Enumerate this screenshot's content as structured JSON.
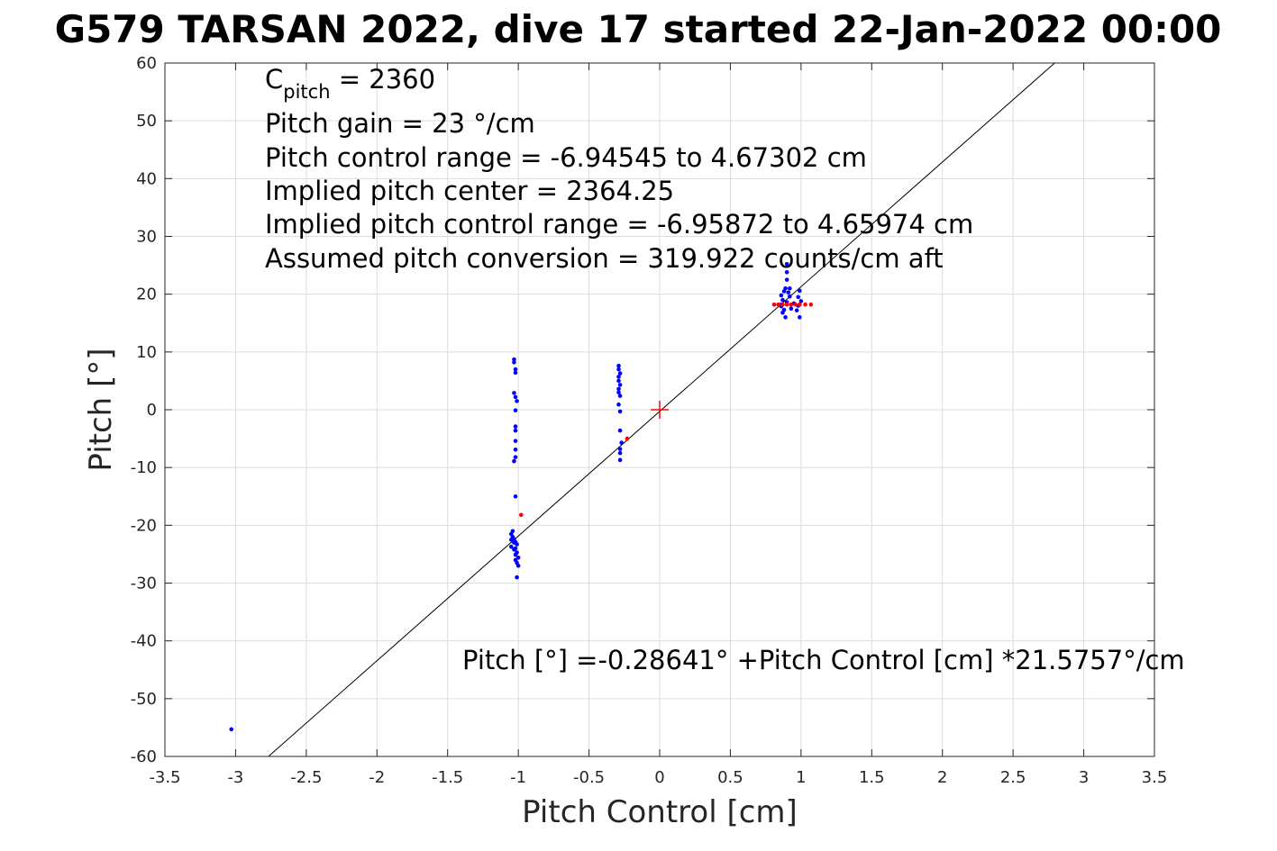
{
  "chart_data": {
    "type": "scatter",
    "title": "G579 TARSAN 2022, dive 17 started 22-Jan-2022 00:00",
    "xlabel": "Pitch Control [cm]",
    "ylabel": "Pitch [°]",
    "xlim": [
      -3.5,
      3.5
    ],
    "ylim": [
      -60,
      60
    ],
    "xticks": [
      "-3.5",
      "-3",
      "-2.5",
      "-2",
      "-1.5",
      "-1",
      "-0.5",
      "0",
      "0.5",
      "1",
      "1.5",
      "2",
      "2.5",
      "3",
      "3.5"
    ],
    "yticks": [
      "-60",
      "-50",
      "-40",
      "-30",
      "-20",
      "-10",
      "0",
      "10",
      "20",
      "30",
      "40",
      "50",
      "60"
    ],
    "grid": true,
    "annotations": {
      "cpitch_symbol": "C",
      "cpitch_subscript": "pitch",
      "cpitch_value": " = 2360",
      "lines": [
        "Pitch gain = 23 °/cm",
        "Pitch control range = -6.94545 to 4.67302 cm",
        "Implied pitch center = 2364.25",
        "Implied pitch control range = -6.95872 to 4.65974 cm",
        "Assumed pitch conversion = 319.922 counts/cm aft"
      ],
      "fit_equation": "Pitch [°] =-0.28641°  +Pitch Control [cm] *21.5757°/cm"
    },
    "fit_line": {
      "intercept": -0.28641,
      "slope": 21.5757,
      "color": "#000000"
    },
    "center_marker": {
      "x": 0,
      "y": 0,
      "color": "#ff0000"
    },
    "series": [
      {
        "color": "#0000ff",
        "points": [
          [
            -3.03,
            -55.3
          ],
          [
            -1.03,
            8.7
          ],
          [
            -1.03,
            8.2
          ],
          [
            -1.02,
            7.0
          ],
          [
            -1.02,
            6.4
          ],
          [
            -1.03,
            2.9
          ],
          [
            -1.02,
            2.2
          ],
          [
            -1.01,
            1.5
          ],
          [
            -1.02,
            -0.1
          ],
          [
            -1.02,
            -2.9
          ],
          [
            -1.02,
            -3.6
          ],
          [
            -1.02,
            -5.4
          ],
          [
            -1.02,
            -6.9
          ],
          [
            -1.02,
            -8.2
          ],
          [
            -1.03,
            -8.9
          ],
          [
            -1.02,
            -15.0
          ],
          [
            -1.05,
            -21.5
          ],
          [
            -1.04,
            -22.0
          ],
          [
            -1.03,
            -22.4
          ],
          [
            -1.02,
            -22.9
          ],
          [
            -1.01,
            -23.3
          ],
          [
            -1.05,
            -23.7
          ],
          [
            -1.03,
            -24.2
          ],
          [
            -1.01,
            -24.7
          ],
          [
            -1.02,
            -25.1
          ],
          [
            -1.0,
            -25.6
          ],
          [
            -1.02,
            -26.0
          ],
          [
            -1.01,
            -26.5
          ],
          [
            -1.0,
            -27.0
          ],
          [
            -1.01,
            -29.0
          ],
          [
            -1.04,
            -21.0
          ],
          [
            -1.03,
            -23.0
          ],
          [
            -1.02,
            -24.0
          ],
          [
            -1.05,
            -22.5
          ],
          [
            -0.29,
            7.6
          ],
          [
            -0.29,
            7.0
          ],
          [
            -0.28,
            6.3
          ],
          [
            -0.29,
            5.7
          ],
          [
            -0.29,
            5.0
          ],
          [
            -0.28,
            4.3
          ],
          [
            -0.29,
            3.6
          ],
          [
            -0.29,
            3.0
          ],
          [
            -0.28,
            2.4
          ],
          [
            -0.29,
            0.9
          ],
          [
            -0.28,
            -0.3
          ],
          [
            -0.28,
            -3.6
          ],
          [
            -0.27,
            -5.7
          ],
          [
            -0.28,
            -6.8
          ],
          [
            -0.28,
            -7.5
          ],
          [
            -0.28,
            -8.7
          ],
          [
            0.86,
            19.8
          ],
          [
            0.87,
            19.0
          ],
          [
            0.86,
            18.2
          ],
          [
            0.88,
            17.3
          ],
          [
            0.87,
            16.8
          ],
          [
            0.86,
            17.9
          ],
          [
            0.89,
            21.0
          ],
          [
            0.9,
            22.5
          ],
          [
            0.9,
            23.8
          ],
          [
            0.9,
            25.2
          ],
          [
            0.91,
            20.3
          ],
          [
            0.92,
            19.6
          ],
          [
            0.9,
            18.6
          ],
          [
            0.89,
            16.0
          ],
          [
            0.93,
            17.5
          ],
          [
            0.95,
            18.4
          ],
          [
            0.98,
            19.5
          ],
          [
            0.99,
            20.6
          ],
          [
            0.98,
            18.0
          ],
          [
            0.99,
            16.0
          ],
          [
            0.97,
            17.2
          ],
          [
            1.0,
            18.8
          ],
          [
            0.92,
            21.0
          ],
          [
            0.88,
            20.5
          ]
        ]
      },
      {
        "color": "#ff0000",
        "points": [
          [
            -0.98,
            -18.2
          ],
          [
            -0.23,
            -5.0
          ],
          [
            0.81,
            18.2
          ],
          [
            0.84,
            18.2
          ],
          [
            0.87,
            18.2
          ],
          [
            0.9,
            18.2
          ],
          [
            0.93,
            18.2
          ],
          [
            0.96,
            18.2
          ],
          [
            0.99,
            18.2
          ],
          [
            1.03,
            18.2
          ],
          [
            1.07,
            18.2
          ]
        ]
      }
    ]
  }
}
